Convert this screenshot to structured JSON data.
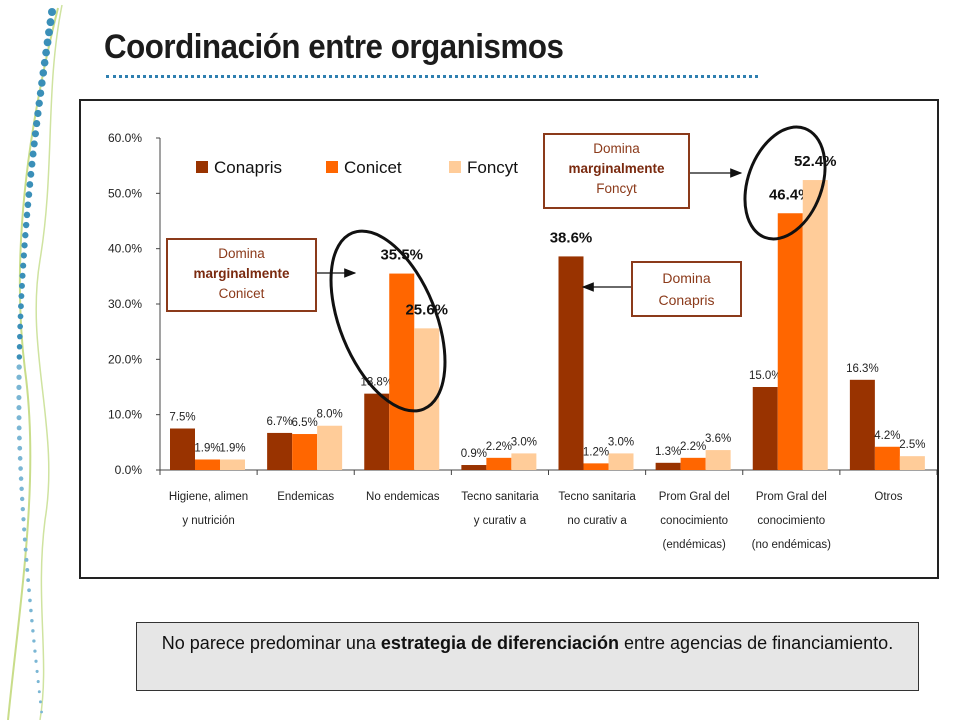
{
  "slide": {
    "title": "Coordinación entre organismos",
    "note": {
      "prefix": "No parece predominar una ",
      "bold": "estrategia de diferenciación",
      "suffix": " entre agencias de financiamiento."
    }
  },
  "colors": {
    "conapris": "#993300",
    "conicet": "#ff6600",
    "foncyt": "#ffcc99",
    "callout_border": "#8b3a1a",
    "title_rule": "#2e7fb0"
  },
  "callouts": {
    "conicet": {
      "line1": "Domina",
      "line2": "marginalmente",
      "line3": "Conicet"
    },
    "foncyt": {
      "line1": "Domina",
      "line2": "marginalmente",
      "line3": "Foncyt"
    },
    "conapris": {
      "line1": "Domina",
      "line2": "Conapris"
    }
  },
  "chart_data": {
    "type": "bar",
    "title": "",
    "xlabel": "",
    "ylabel": "",
    "ylim": [
      0,
      60
    ],
    "yticks": [
      "0.0%",
      "10.0%",
      "20.0%",
      "30.0%",
      "40.0%",
      "50.0%",
      "60.0%"
    ],
    "legend_position": "top-left",
    "grid": false,
    "categories": [
      [
        "Higiene, alimen",
        "y  nutrición"
      ],
      [
        "Endemicas"
      ],
      [
        "No endemicas"
      ],
      [
        "Tecno sanitaria",
        "y  curativ a"
      ],
      [
        "Tecno sanitaria",
        "no curativ a"
      ],
      [
        "Prom Gral del",
        "conocimiento",
        "(endémicas)"
      ],
      [
        "Prom Gral del",
        "conocimiento",
        "(no endémicas)"
      ],
      [
        "Otros"
      ]
    ],
    "series": [
      {
        "name": "Conapris",
        "values": [
          7.5,
          6.7,
          13.8,
          0.9,
          38.6,
          1.3,
          15.0,
          16.3
        ],
        "labels": [
          "7.5%",
          "6.7%",
          "13.8%",
          "0.9%",
          "38.6%",
          "1.3%",
          "15.0%",
          "16.3%"
        ]
      },
      {
        "name": "Conicet",
        "values": [
          1.9,
          6.5,
          35.5,
          2.2,
          1.2,
          2.2,
          46.4,
          4.2
        ],
        "labels": [
          "1.9%",
          "6.5%",
          "35.5%",
          "2.2%",
          "1.2%",
          "2.2%",
          "46.4%",
          "4.2%"
        ]
      },
      {
        "name": "Foncyt",
        "values": [
          1.9,
          8.0,
          25.6,
          3.0,
          3.0,
          3.6,
          52.4,
          2.5
        ],
        "labels": [
          "1.9%",
          "8.0%",
          "25.6%",
          "3.0%",
          "3.0%",
          "3.6%",
          "52.4%",
          "2.5%"
        ]
      }
    ],
    "highlighted": [
      "35.5%",
      "25.6%",
      "38.6%",
      "46.4%",
      "52.4%"
    ]
  }
}
